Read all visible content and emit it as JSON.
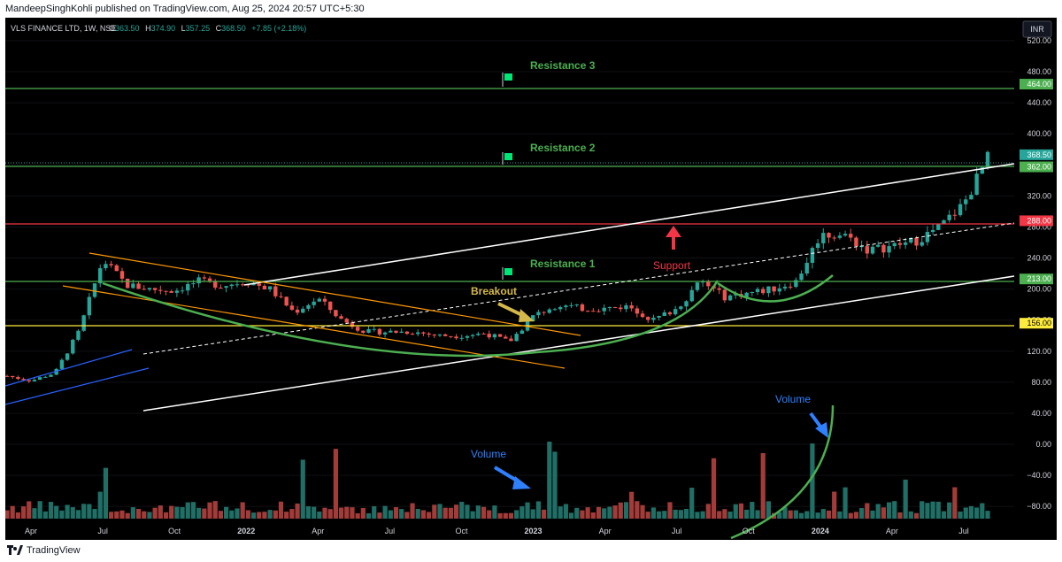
{
  "publisher_line": "MandeepSinghKohli published on TradingView.com, Aug 25, 2024 20:57 UTC+5:30",
  "symbol_line": "VLS FINANCE LTD, 1W, NSE",
  "ohlc": {
    "o_label": "O",
    "o": "363.50",
    "h_label": "H",
    "h": "374.90",
    "l_label": "L",
    "l": "357.25",
    "c_label": "C",
    "c": "368.50",
    "change": "+7.85 (+2.18%)"
  },
  "currency_button": "INR",
  "brand": "TradingView",
  "colors": {
    "up": "#26a69a",
    "down": "#ef5350",
    "vol_up": "#1f6f66",
    "vol_down": "#a33b39",
    "resistance": "#4caf50",
    "red_level": "#f23645",
    "yellow_level": "#ffeb3b",
    "axis_text": "#d1d4dc"
  },
  "annotations": {
    "resistance3": "Resistance 3",
    "resistance2": "Resistance 2",
    "resistance1": "Resistance 1",
    "support": "Support",
    "breakout": "Breakout",
    "volume_1": "Volume",
    "volume_2": "Volume"
  },
  "chart_data": {
    "type": "candlestick",
    "interval": "1W",
    "y_axis": {
      "ticks": [
        "520.00",
        "480.00",
        "440.00",
        "400.00",
        "360.00",
        "320.00",
        "280.00",
        "240.00",
        "200.00",
        "160.00",
        "120.00",
        "80.00",
        "40.00",
        "0.00",
        "−40.00",
        "−80.00"
      ],
      "ylim": [
        -98,
        545
      ]
    },
    "x_axis": {
      "ticks": [
        "Apr",
        "Jul",
        "Oct",
        "2022",
        "Apr",
        "Jul",
        "Oct",
        "2023",
        "Apr",
        "Jul",
        "Oct",
        "2024",
        "Apr",
        "Jul"
      ],
      "tick_dates": [
        "2021-04",
        "2021-07",
        "2021-10",
        "2022-01",
        "2022-04",
        "2022-07",
        "2022-10",
        "2023-01",
        "2023-04",
        "2023-07",
        "2023-10",
        "2024-01",
        "2024-04",
        "2024-07"
      ]
    },
    "levels": [
      {
        "label": "464.00",
        "value": 464,
        "color": "#4caf50"
      },
      {
        "label": "368.50",
        "value": 368.5,
        "color": "#26a69a"
      },
      {
        "label": "362.00",
        "value": 362,
        "color": "#4caf50"
      },
      {
        "label": "288.00",
        "value": 288,
        "color": "#f23645"
      },
      {
        "label": "213.00",
        "value": 213,
        "color": "#4caf50"
      },
      {
        "label": "156.00",
        "value": 156,
        "color": "#ffeb3b"
      }
    ],
    "price_path": [
      [
        "2021-03",
        88
      ],
      [
        "2021-04",
        82
      ],
      [
        "2021-05",
        92
      ],
      [
        "2021-06",
        145
      ],
      [
        "2021-07",
        238
      ],
      [
        "2021-08",
        205
      ],
      [
        "2021-09",
        200
      ],
      [
        "2021-10",
        198
      ],
      [
        "2021-11",
        210
      ],
      [
        "2021-12",
        205
      ],
      [
        "2022-01",
        210
      ],
      [
        "2022-02",
        200
      ],
      [
        "2022-03",
        170
      ],
      [
        "2022-04",
        188
      ],
      [
        "2022-05",
        160
      ],
      [
        "2022-06",
        145
      ],
      [
        "2022-07",
        145
      ],
      [
        "2022-08",
        145
      ],
      [
        "2022-09",
        140
      ],
      [
        "2022-10",
        140
      ],
      [
        "2022-11",
        143
      ],
      [
        "2022-12",
        132
      ],
      [
        "2023-01",
        165
      ],
      [
        "2023-02",
        180
      ],
      [
        "2023-03",
        175
      ],
      [
        "2023-04",
        175
      ],
      [
        "2023-05",
        178
      ],
      [
        "2023-06",
        160
      ],
      [
        "2023-07",
        175
      ],
      [
        "2023-08",
        210
      ],
      [
        "2023-09",
        190
      ],
      [
        "2023-10",
        195
      ],
      [
        "2023-11",
        200
      ],
      [
        "2023-12",
        210
      ],
      [
        "2024-01",
        270
      ],
      [
        "2024-02",
        270
      ],
      [
        "2024-03",
        250
      ],
      [
        "2024-04",
        255
      ],
      [
        "2024-05",
        262
      ],
      [
        "2024-06",
        280
      ],
      [
        "2024-07",
        310
      ],
      [
        "2024-08",
        368.5
      ]
    ]
  }
}
